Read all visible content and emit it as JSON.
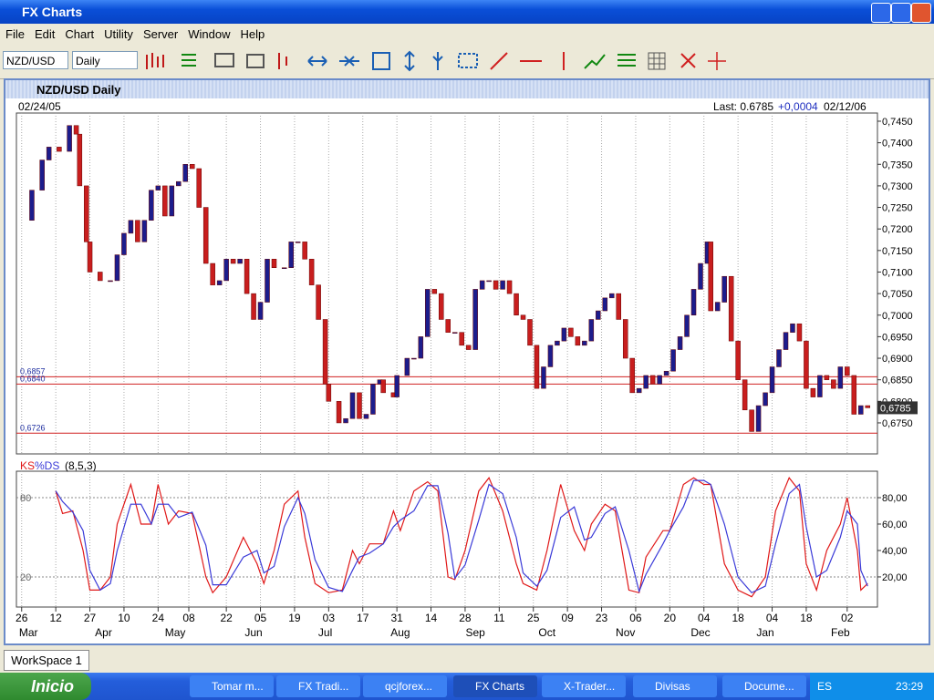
{
  "window": {
    "title": "FX Charts"
  },
  "menu": [
    "File",
    "Edit",
    "Chart",
    "Utility",
    "Server",
    "Window",
    "Help"
  ],
  "toolbar": {
    "symbol": "NZD/USD",
    "period": "Daily"
  },
  "chart_window": {
    "title": "NZD/USD Daily",
    "start_date": "02/24/05",
    "last": "Last: 0.6785",
    "change": "+0,0004",
    "end_date": "02/12/06"
  },
  "chart_data": [
    {
      "type": "candlestick",
      "x": [
        0,
        4,
        7,
        9,
        12,
        15,
        17,
        18,
        20,
        21,
        24,
        27,
        29,
        31,
        33,
        35,
        37,
        39,
        41,
        43,
        45,
        47,
        49,
        51,
        53,
        55,
        57,
        59,
        61,
        63,
        65,
        67,
        69,
        71,
        73,
        75,
        78,
        80,
        82,
        84,
        86,
        88,
        90,
        91,
        94,
        96,
        98,
        100,
        102,
        104,
        106,
        107,
        110,
        111,
        114,
        116,
        118,
        120,
        122,
        124,
        126,
        128,
        130,
        132,
        134,
        136,
        138,
        140,
        142,
        144,
        146,
        148,
        150,
        152,
        154,
        156,
        158,
        160,
        162,
        164,
        166,
        168,
        170,
        172,
        174,
        176,
        178,
        180,
        182,
        184,
        186,
        188,
        190,
        192,
        194,
        196,
        198,
        200,
        202,
        203,
        205,
        207,
        209,
        211,
        213,
        215,
        217,
        219,
        221,
        223,
        225,
        227,
        229,
        231,
        233,
        235,
        237,
        239,
        241,
        243,
        245,
        247,
        249
      ],
      "values": [
        0.722,
        0.729,
        0.736,
        0.739,
        0.738,
        0.744,
        0.742,
        0.73,
        0.717,
        0.71,
        0.708,
        0.708,
        0.714,
        0.719,
        0.722,
        0.717,
        0.722,
        0.729,
        0.73,
        0.723,
        0.73,
        0.731,
        0.735,
        0.734,
        0.725,
        0.712,
        0.707,
        0.708,
        0.713,
        0.712,
        0.713,
        0.705,
        0.699,
        0.703,
        0.713,
        0.711,
        0.711,
        0.717,
        0.717,
        0.713,
        0.707,
        0.699,
        0.684,
        0.68,
        0.675,
        0.676,
        0.682,
        0.676,
        0.677,
        0.684,
        0.685,
        0.682,
        0.681,
        0.686,
        0.69,
        0.69,
        0.695,
        0.706,
        0.705,
        0.699,
        0.696,
        0.696,
        0.693,
        0.692,
        0.706,
        0.708,
        0.708,
        0.706,
        0.708,
        0.705,
        0.7,
        0.699,
        0.693,
        0.683,
        0.688,
        0.693,
        0.694,
        0.697,
        0.695,
        0.693,
        0.694,
        0.699,
        0.701,
        0.704,
        0.705,
        0.699,
        0.69,
        0.682,
        0.683,
        0.686,
        0.684,
        0.686,
        0.687,
        0.692,
        0.695,
        0.7,
        0.706,
        0.712,
        0.717,
        0.701,
        0.703,
        0.709,
        0.694,
        0.685,
        0.678,
        0.673,
        0.679,
        0.682,
        0.688,
        0.692,
        0.696,
        0.698,
        0.694,
        0.683,
        0.681,
        0.686,
        0.685,
        0.683,
        0.688,
        0.686,
        0.677,
        0.679,
        0.6785
      ],
      "up_color": "#1c1c8c",
      "down_color": "#c81e1e",
      "xlim": [
        0,
        250
      ],
      "ylim": [
        0.6678,
        0.7469
      ],
      "yticks": [
        {
          "value": 0.745,
          "label": "0,7450"
        },
        {
          "value": 0.74,
          "label": "0,7400"
        },
        {
          "value": 0.735,
          "label": "0,7350"
        },
        {
          "value": 0.73,
          "label": "0,7300"
        },
        {
          "value": 0.725,
          "label": "0,7250"
        },
        {
          "value": 0.72,
          "label": "0,7200"
        },
        {
          "value": 0.715,
          "label": "0,7150"
        },
        {
          "value": 0.71,
          "label": "0,7100"
        },
        {
          "value": 0.705,
          "label": "0,7050"
        },
        {
          "value": 0.7,
          "label": "0,7000"
        },
        {
          "value": 0.695,
          "label": "0,6950"
        },
        {
          "value": 0.69,
          "label": "0,6900"
        },
        {
          "value": 0.685,
          "label": "0,6850"
        },
        {
          "value": 0.68,
          "label": "0,6800"
        },
        {
          "value": 0.675,
          "label": "0,6750"
        }
      ],
      "levels": [
        {
          "value": 0.6857,
          "label": "0,6857"
        },
        {
          "value": 0.684,
          "label": "0,6840"
        },
        {
          "value": 0.6726,
          "label": "0,6726"
        }
      ],
      "level_color": "#d02020",
      "last_price": {
        "value": 0.6785,
        "label": "0,6785"
      },
      "grid": true
    },
    {
      "type": "line",
      "title": "(8,5,3)",
      "x": [
        11,
        13,
        16,
        19,
        21,
        24,
        27,
        29,
        33,
        36,
        39,
        41,
        44,
        47,
        51,
        55,
        57,
        61,
        66,
        70,
        72,
        75,
        78,
        82,
        84,
        87,
        91,
        95,
        98,
        100,
        103,
        107,
        110,
        112,
        116,
        120,
        123,
        126,
        128,
        131,
        135,
        138,
        142,
        146,
        148,
        152,
        155,
        159,
        163,
        166,
        168,
        172,
        175,
        179,
        182,
        184,
        189,
        191,
        195,
        198,
        201,
        203,
        207,
        211,
        215,
        219,
        222,
        226,
        229,
        231,
        234,
        237,
        241,
        243,
        246,
        247,
        249
      ],
      "series": [
        {
          "name": "KS",
          "color": "#e01818",
          "values": [
            85,
            68,
            70,
            40,
            10,
            10,
            20,
            60,
            90,
            60,
            60,
            90,
            60,
            70,
            68,
            20,
            8,
            20,
            50,
            30,
            15,
            40,
            75,
            85,
            50,
            15,
            8,
            10,
            40,
            30,
            45,
            45,
            70,
            55,
            85,
            92,
            85,
            20,
            18,
            40,
            85,
            95,
            70,
            30,
            15,
            10,
            40,
            90,
            55,
            40,
            60,
            75,
            70,
            10,
            8,
            35,
            55,
            55,
            90,
            95,
            90,
            90,
            30,
            10,
            5,
            20,
            70,
            95,
            85,
            30,
            10,
            40,
            60,
            80,
            40,
            10,
            15
          ]
        },
        {
          "name": "%DS",
          "color": "#3a3ad8",
          "values": [
            85,
            77,
            69,
            55,
            25,
            10,
            15,
            40,
            75,
            75,
            60,
            75,
            75,
            65,
            69,
            44,
            14,
            14,
            35,
            40,
            23,
            28,
            58,
            80,
            68,
            33,
            12,
            9,
            25,
            35,
            38,
            45,
            58,
            63,
            70,
            89,
            89,
            53,
            19,
            29,
            63,
            90,
            83,
            50,
            23,
            13,
            25,
            65,
            73,
            48,
            50,
            68,
            73,
            40,
            9,
            22,
            45,
            55,
            73,
            93,
            93,
            90,
            60,
            20,
            8,
            13,
            45,
            83,
            90,
            58,
            20,
            25,
            50,
            70,
            60,
            25,
            13
          ]
        }
      ],
      "xlim": [
        0,
        250
      ],
      "ylim": [
        -2.8,
        100
      ],
      "yticks": [
        {
          "value": 80,
          "label": "80,00"
        },
        {
          "value": 60,
          "label": "60,00"
        },
        {
          "value": 40,
          "label": "40,00"
        },
        {
          "value": 20,
          "label": "20,00"
        }
      ],
      "levels": [
        80,
        20
      ],
      "grid": true
    }
  ],
  "x_axis": {
    "xticks": [
      {
        "value": 1,
        "label": "26"
      },
      {
        "value": 11,
        "label": "12"
      },
      {
        "value": 21,
        "label": "27"
      },
      {
        "value": 31,
        "label": "10"
      },
      {
        "value": 41,
        "label": "24"
      },
      {
        "value": 50,
        "label": "08"
      },
      {
        "value": 61,
        "label": "22"
      },
      {
        "value": 71,
        "label": "05"
      },
      {
        "value": 81,
        "label": "19"
      },
      {
        "value": 91,
        "label": "03"
      },
      {
        "value": 101,
        "label": "17"
      },
      {
        "value": 111,
        "label": "31"
      },
      {
        "value": 121,
        "label": "14"
      },
      {
        "value": 131,
        "label": "28"
      },
      {
        "value": 141,
        "label": "11"
      },
      {
        "value": 151,
        "label": "25"
      },
      {
        "value": 161,
        "label": "09"
      },
      {
        "value": 171,
        "label": "23"
      },
      {
        "value": 181,
        "label": "06"
      },
      {
        "value": 191,
        "label": "20"
      },
      {
        "value": 201,
        "label": "04"
      },
      {
        "value": 211,
        "label": "18"
      },
      {
        "value": 221,
        "label": "04"
      },
      {
        "value": 231,
        "label": "18"
      },
      {
        "value": 243,
        "label": "02"
      }
    ],
    "months": [
      {
        "value": 3,
        "label": "Mar"
      },
      {
        "value": 25,
        "label": "Apr"
      },
      {
        "value": 46,
        "label": "May"
      },
      {
        "value": 69,
        "label": "Jun"
      },
      {
        "value": 90,
        "label": "Jul"
      },
      {
        "value": 112,
        "label": "Aug"
      },
      {
        "value": 134,
        "label": "Sep"
      },
      {
        "value": 155,
        "label": "Oct"
      },
      {
        "value": 178,
        "label": "Nov"
      },
      {
        "value": 200,
        "label": "Dec"
      },
      {
        "value": 219,
        "label": "Jan"
      },
      {
        "value": 241,
        "label": "Feb"
      }
    ]
  },
  "workspace": "WorkSpace 1",
  "taskbar": {
    "start": "Inicio",
    "items": [
      "Tomar m...",
      "FX Tradi...",
      "qcjforex...",
      "FX Charts",
      "X-Trader...",
      "Divisas",
      "Docume..."
    ],
    "language": "ES",
    "clock": "23:29"
  }
}
